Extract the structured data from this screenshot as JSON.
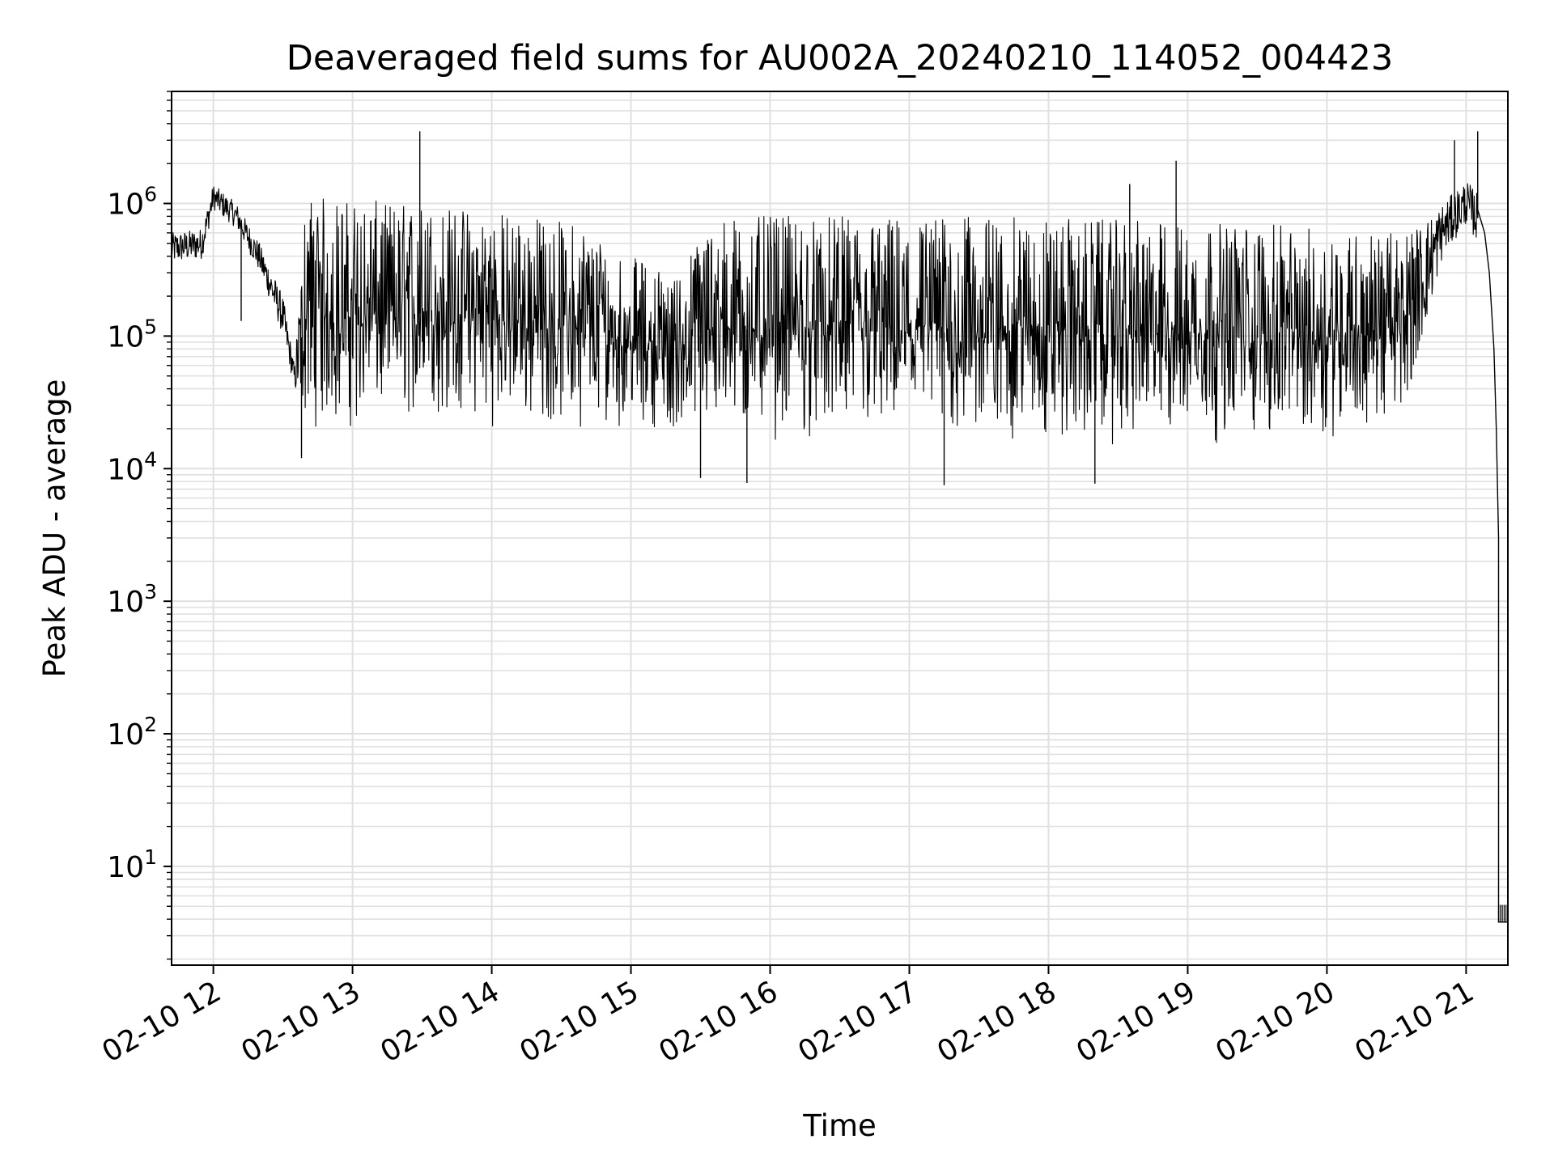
{
  "chart_data": {
    "type": "line",
    "title": "Deaveraged field sums for AU002A_20240210_114052_004423",
    "xlabel": "Time",
    "ylabel": "Peak ADU - average",
    "yscale": "log",
    "xlim": [
      "2024-02-10 11:42",
      "2024-02-10 21:18"
    ],
    "ylim": [
      1.8,
      7000000
    ],
    "grid": true,
    "x_ticks": [
      {
        "value": "2024-02-10 12:00",
        "label": "02-10 12"
      },
      {
        "value": "2024-02-10 13:00",
        "label": "02-10 13"
      },
      {
        "value": "2024-02-10 14:00",
        "label": "02-10 14"
      },
      {
        "value": "2024-02-10 15:00",
        "label": "02-10 15"
      },
      {
        "value": "2024-02-10 16:00",
        "label": "02-10 16"
      },
      {
        "value": "2024-02-10 17:00",
        "label": "02-10 17"
      },
      {
        "value": "2024-02-10 18:00",
        "label": "02-10 18"
      },
      {
        "value": "2024-02-10 19:00",
        "label": "02-10 19"
      },
      {
        "value": "2024-02-10 20:00",
        "label": "02-10 20"
      },
      {
        "value": "2024-02-10 21:00",
        "label": "02-10 21"
      }
    ],
    "y_ticks": [
      {
        "value": 10,
        "base": "10",
        "exp": "1"
      },
      {
        "value": 100,
        "base": "10",
        "exp": "2"
      },
      {
        "value": 1000,
        "base": "10",
        "exp": "3"
      },
      {
        "value": 10000,
        "base": "10",
        "exp": "4"
      },
      {
        "value": 100000,
        "base": "10",
        "exp": "5"
      },
      {
        "value": 1000000,
        "base": "10",
        "exp": "6"
      }
    ],
    "line_color": "#000000",
    "grid_color": "#e0e0e0",
    "series": [
      {
        "envelope": [
          {
            "x": "2024-02-10 11:42",
            "low": 350000,
            "high": 600000
          },
          {
            "x": "2024-02-10 11:55",
            "low": 380000,
            "high": 650000
          },
          {
            "x": "2024-02-10 12:00",
            "low": 900000,
            "high": 1400000
          },
          {
            "x": "2024-02-10 12:10",
            "low": 650000,
            "high": 1000000
          },
          {
            "x": "2024-02-10 12:20",
            "low": 300000,
            "high": 500000
          },
          {
            "x": "2024-02-10 12:30",
            "low": 100000,
            "high": 200000
          },
          {
            "x": "2024-02-10 12:35",
            "low": 40000,
            "high": 60000
          },
          {
            "x": "2024-02-10 12:40",
            "low": 20000,
            "high": 1200000
          },
          {
            "x": "2024-02-10 12:50",
            "low": 18000,
            "high": 1100000
          },
          {
            "x": "2024-02-10 13:30",
            "low": 22000,
            "high": 1000000
          },
          {
            "x": "2024-02-10 14:00",
            "low": 20000,
            "high": 900000
          },
          {
            "x": "2024-02-10 14:40",
            "low": 20000,
            "high": 700000
          },
          {
            "x": "2024-02-10 15:00",
            "low": 20000,
            "high": 400000
          },
          {
            "x": "2024-02-10 15:20",
            "low": 20000,
            "high": 300000
          },
          {
            "x": "2024-02-10 15:35",
            "low": 16000,
            "high": 800000
          },
          {
            "x": "2024-02-10 16:30",
            "low": 15000,
            "high": 800000
          },
          {
            "x": "2024-02-10 17:30",
            "low": 14000,
            "high": 800000
          },
          {
            "x": "2024-02-10 18:30",
            "low": 14000,
            "high": 750000
          },
          {
            "x": "2024-02-10 19:30",
            "low": 15000,
            "high": 700000
          },
          {
            "x": "2024-02-10 20:30",
            "low": 18000,
            "high": 600000
          },
          {
            "x": "2024-02-10 20:40",
            "low": 80000,
            "high": 700000
          },
          {
            "x": "2024-02-10 20:50",
            "low": 400000,
            "high": 1000000
          },
          {
            "x": "2024-02-10 21:00",
            "low": 700000,
            "high": 1500000
          },
          {
            "x": "2024-02-10 21:05",
            "low": 500000,
            "high": 1200000
          }
        ],
        "spikes": [
          {
            "x": "2024-02-10 12:12",
            "y": 130000
          },
          {
            "x": "2024-02-10 12:38",
            "y": 12000
          },
          {
            "x": "2024-02-10 13:29",
            "y": 3500000
          },
          {
            "x": "2024-02-10 15:30",
            "y": 8500
          },
          {
            "x": "2024-02-10 15:50",
            "y": 7800
          },
          {
            "x": "2024-02-10 17:15",
            "y": 7500
          },
          {
            "x": "2024-02-10 18:20",
            "y": 7700
          },
          {
            "x": "2024-02-10 18:35",
            "y": 1400000
          },
          {
            "x": "2024-02-10 18:55",
            "y": 2100000
          },
          {
            "x": "2024-02-10 20:55",
            "y": 3000000
          },
          {
            "x": "2024-02-10 21:05",
            "y": 3500000
          }
        ],
        "tail": [
          {
            "x": "2024-02-10 21:05",
            "y": 900000
          },
          {
            "x": "2024-02-10 21:08",
            "y": 600000
          },
          {
            "x": "2024-02-10 21:10",
            "y": 300000
          },
          {
            "x": "2024-02-10 21:12",
            "y": 80000
          },
          {
            "x": "2024-02-10 21:13",
            "y": 20000
          },
          {
            "x": "2024-02-10 21:14",
            "y": 3000
          },
          {
            "x": "2024-02-10 21:14",
            "y": 3.8
          },
          {
            "x": "2024-02-10 21:18",
            "y": 3.8
          }
        ]
      }
    ]
  }
}
